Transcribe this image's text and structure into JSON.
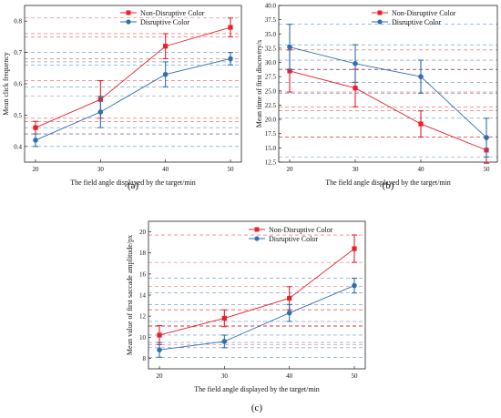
{
  "colors": {
    "non_disruptive": "#e8202a",
    "disruptive": "#2f6fb0"
  },
  "chart_data": [
    {
      "type": "line",
      "caption": "(a)",
      "x": [
        20,
        30,
        40,
        50
      ],
      "xlabel": "The field angle displayed by the target/min",
      "ylabel": "Mean click frequency",
      "ylim": [
        0.35,
        0.85
      ],
      "yticks": [
        "0.4",
        "0.5",
        "0.6",
        "0.7",
        "0.8"
      ],
      "yticks_values": [
        0.4,
        0.5,
        0.6,
        0.7,
        0.8
      ],
      "legend_position": "top-left",
      "series": [
        {
          "name": "Non-Disruptive Color",
          "values": [
            0.46,
            0.55,
            0.72,
            0.78
          ],
          "errors": [
            0.02,
            0.06,
            0.04,
            0.03
          ]
        },
        {
          "name": "Disruptive Color",
          "values": [
            0.42,
            0.51,
            0.63,
            0.68
          ],
          "errors": [
            0.02,
            0.05,
            0.04,
            0.02
          ]
        }
      ]
    },
    {
      "type": "line",
      "caption": "(b)",
      "x": [
        20,
        30,
        40,
        50
      ],
      "xlabel": "The field angle displayed by the target/min",
      "ylabel": "Mean time of first discovery/s",
      "ylim": [
        12.5,
        40.0
      ],
      "yticks": [
        "12.5",
        "15.0",
        "17.5",
        "20.0",
        "22.5",
        "25.0",
        "27.5",
        "30.0",
        "32.5",
        "35.0",
        "37.5",
        "40.0"
      ],
      "yticks_values": [
        12.5,
        15.0,
        17.5,
        20.0,
        22.5,
        25.0,
        27.5,
        30.0,
        32.5,
        35.0,
        37.5,
        40.0
      ],
      "legend_position": "top-right",
      "series": [
        {
          "name": "Non-Disruptive Color",
          "values": [
            28.5,
            25.5,
            19.2,
            14.6
          ],
          "errors": [
            3.7,
            3.3,
            2.3,
            2.3
          ]
        },
        {
          "name": "Disruptive Color",
          "values": [
            32.7,
            29.8,
            27.5,
            16.8
          ],
          "errors": [
            4.0,
            3.3,
            2.9,
            3.4
          ]
        }
      ]
    },
    {
      "type": "line",
      "caption": "(c)",
      "x": [
        20,
        30,
        40,
        50
      ],
      "xlabel": "The field angle displayed by the target/min",
      "ylabel": "Mean value of first saccade amplitude/px",
      "ylim": [
        7,
        21
      ],
      "yticks": [
        "8",
        "10",
        "12",
        "14",
        "16",
        "18",
        "20"
      ],
      "yticks_values": [
        8,
        10,
        12,
        14,
        16,
        18,
        20
      ],
      "legend_position": "top-right",
      "series": [
        {
          "name": "Non-Disruptive Color",
          "values": [
            10.2,
            11.8,
            13.7,
            18.4
          ],
          "errors": [
            0.9,
            0.8,
            1.1,
            1.3
          ]
        },
        {
          "name": "Disruptive Color",
          "values": [
            8.8,
            9.6,
            12.3,
            14.9
          ],
          "errors": [
            0.7,
            0.6,
            0.8,
            0.7
          ]
        }
      ]
    }
  ]
}
